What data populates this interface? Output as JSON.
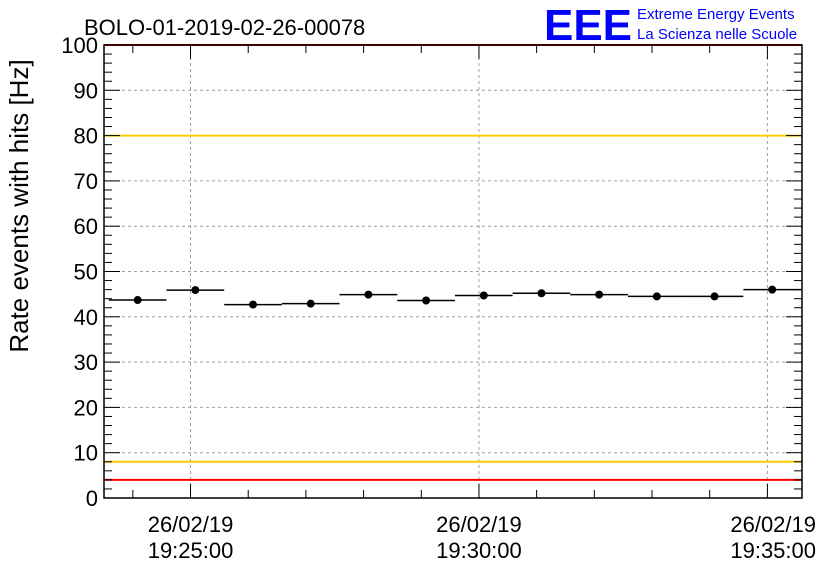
{
  "chart_data": {
    "type": "scatter",
    "title": "BOLO-01-2019-02-26-00078",
    "xlabel": "",
    "ylabel": "Rate events with hits [Hz]",
    "ylim": [
      0,
      100
    ],
    "yticks": [
      0,
      10,
      20,
      30,
      40,
      50,
      60,
      70,
      80,
      90,
      100
    ],
    "xlim_seconds_from_19_23_30": [
      0,
      726
    ],
    "xtick_labels": [
      {
        "date": "26/02/19",
        "time": "19:25:00"
      },
      {
        "date": "26/02/19",
        "time": "19:30:00"
      },
      {
        "date": "26/02/19",
        "time": "19:35:00"
      }
    ],
    "grid": true,
    "reference_lines": [
      {
        "y": 100,
        "color": "#ff0000"
      },
      {
        "y": 80,
        "color": "#ffcc00"
      },
      {
        "y": 8,
        "color": "#ffcc00"
      },
      {
        "y": 4,
        "color": "#ff0000"
      }
    ],
    "series": [
      {
        "times": [
          "19:24:05",
          "19:25:05",
          "19:26:05",
          "19:27:05",
          "19:28:05",
          "19:29:05",
          "19:30:05",
          "19:31:05",
          "19:32:05",
          "19:33:05",
          "19:34:05",
          "19:35:05"
        ],
        "values": [
          43.7,
          45.9,
          42.7,
          42.9,
          44.9,
          43.6,
          44.7,
          45.2,
          44.9,
          44.5,
          44.5,
          46.0
        ]
      }
    ]
  },
  "logo": {
    "letters": "EEE",
    "line1": "Extreme Energy Events",
    "line2": "La Scienza nelle Scuole",
    "color": "#0000ff"
  }
}
